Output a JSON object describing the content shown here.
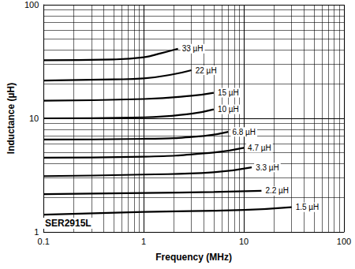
{
  "chart_data": {
    "type": "line",
    "title": "SER2915L",
    "x_label": "Frequency (MHz)",
    "y_label": "Inductance (µH)",
    "log": true,
    "grid": true,
    "xlim": [
      0.1,
      100
    ],
    "xticks": [
      0.1,
      1,
      10,
      100
    ],
    "ylim": [
      1,
      100
    ],
    "yticks": [
      1,
      10,
      100
    ],
    "series": [
      {
        "name": "33 µH",
        "color": "#000000",
        "x": [
          0.1,
          0.5,
          1,
          1.5,
          2.2
        ],
        "values": [
          32.5,
          33,
          34.5,
          37.5,
          41
        ]
      },
      {
        "name": "22 µH",
        "color": "#000000",
        "x": [
          0.1,
          0.5,
          1,
          2,
          3
        ],
        "values": [
          21.5,
          22,
          22.5,
          24.5,
          26.5
        ]
      },
      {
        "name": "15 µH",
        "color": "#000000",
        "x": [
          0.1,
          1,
          3,
          5
        ],
        "values": [
          14.3,
          14.8,
          15.8,
          16.8
        ]
      },
      {
        "name": "10 µH",
        "color": "#000000",
        "x": [
          0.1,
          1,
          3,
          5
        ],
        "values": [
          10,
          10.2,
          11,
          12
        ]
      },
      {
        "name": "6.8 µH",
        "color": "#000000",
        "x": [
          0.1,
          1,
          4,
          7
        ],
        "values": [
          6.5,
          6.6,
          7,
          7.6
        ]
      },
      {
        "name": "4.7 µH",
        "color": "#000000",
        "x": [
          0.1,
          1,
          5,
          10
        ],
        "values": [
          4.5,
          4.6,
          5,
          5.5
        ]
      },
      {
        "name": "3.3 µH",
        "color": "#000000",
        "x": [
          0.1,
          1,
          5,
          12
        ],
        "values": [
          3.1,
          3.2,
          3.35,
          3.7
        ]
      },
      {
        "name": "2.2 µH",
        "color": "#000000",
        "x": [
          0.1,
          1,
          5,
          15
        ],
        "values": [
          2.15,
          2.2,
          2.25,
          2.3
        ]
      },
      {
        "name": "1.5 µH",
        "color": "#000000",
        "x": [
          0.1,
          1,
          10,
          30
        ],
        "values": [
          1.42,
          1.5,
          1.56,
          1.65
        ]
      }
    ]
  }
}
